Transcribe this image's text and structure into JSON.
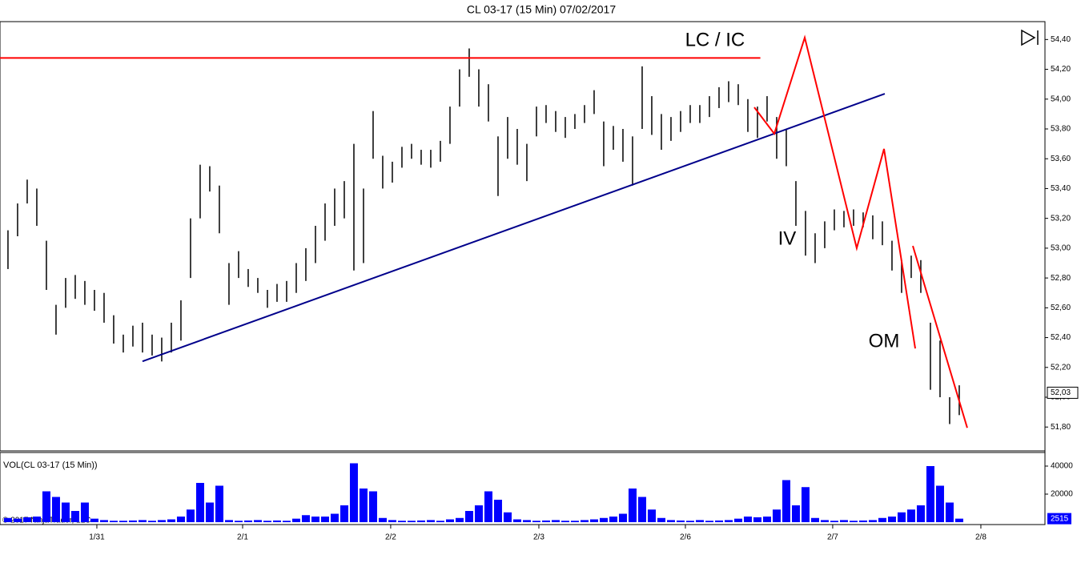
{
  "chart_data": [
    {
      "type": "range",
      "title": "CL 03-17 (15 Min)  07/02/2017",
      "color": "#000000",
      "highs": [
        53.12,
        53.3,
        53.46,
        53.4,
        53.05,
        52.62,
        52.8,
        52.82,
        52.78,
        52.72,
        52.7,
        52.55,
        52.42,
        52.48,
        52.5,
        52.42,
        52.4,
        52.5,
        52.65,
        53.2,
        53.56,
        53.55,
        53.42,
        52.9,
        52.98,
        52.86,
        52.8,
        52.72,
        52.76,
        52.78,
        52.9,
        53.0,
        53.15,
        53.3,
        53.4,
        53.45,
        53.7,
        53.4,
        53.92,
        53.62,
        53.58,
        53.68,
        53.7,
        53.66,
        53.66,
        53.72,
        53.95,
        54.2,
        54.34,
        54.2,
        54.1,
        53.75,
        53.88,
        53.8,
        53.7,
        53.95,
        53.96,
        53.92,
        53.88,
        53.9,
        53.96,
        54.06,
        53.85,
        53.82,
        53.8,
        53.75,
        54.22,
        54.02,
        53.9,
        53.88,
        53.92,
        53.96,
        53.96,
        54.02,
        54.08,
        54.12,
        54.1,
        54.0,
        53.95,
        54.02,
        53.88,
        53.8,
        53.45,
        53.25,
        53.1,
        53.18,
        53.26,
        53.25,
        53.26,
        53.24,
        53.22,
        53.18,
        53.05,
        52.92,
        52.95,
        52.92,
        52.5,
        52.38,
        52.0,
        52.08
      ],
      "lows": [
        52.86,
        53.08,
        53.3,
        53.15,
        52.72,
        52.42,
        52.6,
        52.66,
        52.62,
        52.58,
        52.5,
        52.36,
        52.3,
        52.34,
        52.3,
        52.28,
        52.24,
        52.3,
        52.38,
        52.8,
        53.2,
        53.38,
        53.1,
        52.62,
        52.8,
        52.74,
        52.7,
        52.6,
        52.64,
        52.64,
        52.7,
        52.78,
        52.9,
        53.05,
        53.15,
        53.2,
        52.85,
        52.9,
        53.6,
        53.4,
        53.44,
        53.54,
        53.6,
        53.56,
        53.54,
        53.58,
        53.7,
        53.95,
        54.15,
        53.95,
        53.85,
        53.35,
        53.6,
        53.56,
        53.45,
        53.75,
        53.84,
        53.78,
        53.74,
        53.8,
        53.84,
        53.9,
        53.55,
        53.66,
        53.58,
        53.42,
        53.8,
        53.76,
        53.66,
        53.72,
        53.78,
        53.84,
        53.84,
        53.88,
        53.94,
        53.98,
        53.96,
        53.78,
        53.74,
        53.85,
        53.6,
        53.55,
        53.15,
        52.95,
        52.9,
        53.0,
        53.12,
        53.14,
        53.15,
        53.14,
        53.06,
        53.02,
        52.85,
        52.7,
        52.8,
        52.7,
        52.05,
        52.0,
        51.82,
        51.88
      ],
      "ylim": [
        51.64,
        54.52
      ],
      "yticks": [
        {
          "value": 51.8,
          "label": "51,80"
        },
        {
          "value": 52.0,
          "label": "52,00"
        },
        {
          "value": 52.2,
          "label": "52,20"
        },
        {
          "value": 52.4,
          "label": "52,40"
        },
        {
          "value": 52.6,
          "label": "52,60"
        },
        {
          "value": 52.8,
          "label": "52,80"
        },
        {
          "value": 53.0,
          "label": "53,00"
        },
        {
          "value": 53.2,
          "label": "53,20"
        },
        {
          "value": 53.4,
          "label": "53,40"
        },
        {
          "value": 53.6,
          "label": "53,60"
        },
        {
          "value": 53.8,
          "label": "53,80"
        },
        {
          "value": 54.0,
          "label": "54,00"
        },
        {
          "value": 54.2,
          "label": "54,20"
        },
        {
          "value": 54.4,
          "label": "54,40"
        }
      ],
      "xlim": [
        -0.83,
        107.92
      ],
      "xticks": [
        {
          "value": 9.25,
          "label": "1/31"
        },
        {
          "value": 24.42,
          "label": "2/1"
        },
        {
          "value": 39.83,
          "label": "2/2"
        },
        {
          "value": 55.25,
          "label": "2/3"
        },
        {
          "value": 70.5,
          "label": "2/6"
        },
        {
          "value": 85.83,
          "label": "2/7"
        },
        {
          "value": 101.25,
          "label": "2/8"
        }
      ],
      "last_price": {
        "value": 52.03,
        "label": "52,03"
      },
      "lines": [
        {
          "color": "#ff0000",
          "x": [
            -0.83,
            78.3
          ],
          "y": [
            54.276,
            54.276
          ]
        },
        {
          "color": "#00008b",
          "x": [
            14,
            91.25
          ],
          "y": [
            52.241,
            54.036
          ]
        },
        {
          "color": "#ff0000",
          "x": [
            77.67,
            79.75,
            82.92,
            88.33,
            91.17,
            94.42
          ],
          "y": [
            53.945,
            53.768,
            54.413,
            53.0,
            53.666,
            52.327
          ]
        },
        {
          "color": "#ff0000",
          "x": [
            94.17,
            99.83
          ],
          "y": [
            53.015,
            51.795
          ]
        }
      ],
      "annotations": [
        {
          "text": "LC / IC",
          "x": 73.58,
          "y": 54.39
        },
        {
          "text": "IV",
          "x": 81.08,
          "y": 53.058
        },
        {
          "text": "OM",
          "x": 91.17,
          "y": 52.37
        }
      ]
    },
    {
      "type": "bar",
      "title": "VOL(CL 03-17 (15 Min))",
      "color": "#0000ff",
      "values": [
        3000,
        2500,
        3500,
        4000,
        22000,
        18000,
        14000,
        8000,
        14000,
        2500,
        1500,
        1000,
        1000,
        1200,
        1500,
        1000,
        1500,
        2000,
        4000,
        9000,
        28000,
        14000,
        26000,
        1500,
        1000,
        1200,
        1500,
        1000,
        1200,
        1000,
        2500,
        5000,
        4000,
        4000,
        6000,
        12000,
        42000,
        24000,
        22000,
        3000,
        1500,
        1000,
        1000,
        1200,
        1500,
        1000,
        2000,
        3000,
        8000,
        12000,
        22000,
        16000,
        7000,
        2000,
        1500,
        1000,
        1200,
        1500,
        1000,
        1000,
        1500,
        2000,
        3000,
        4000,
        6000,
        24000,
        18000,
        9000,
        3000,
        1500,
        1200,
        1000,
        1500,
        1000,
        1200,
        1500,
        2500,
        4000,
        3500,
        4000,
        9000,
        30000,
        12000,
        25000,
        3000,
        1500,
        1000,
        1500,
        1000,
        1200,
        1500,
        3000,
        4000,
        7000,
        9000,
        12000,
        40000,
        26000,
        14000,
        2515
      ],
      "ylim": [
        -1700,
        49700
      ],
      "yticks": [
        20000,
        40000
      ]
    }
  ],
  "footer": "© 2017 NinjaTrader, LLC"
}
